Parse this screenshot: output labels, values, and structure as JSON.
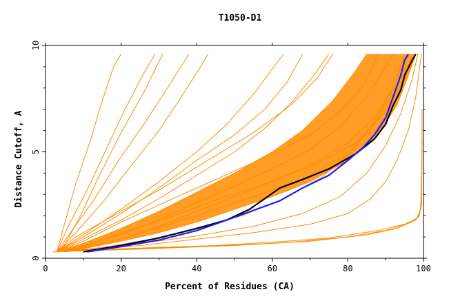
{
  "chart_data": {
    "type": "line",
    "title": "T1050-D1",
    "xlabel": "Percent of Residues (CA)",
    "ylabel": "Distance Cutoff, A",
    "xlim": [
      0,
      100
    ],
    "ylim": [
      0,
      10
    ],
    "x_ticks": [
      0,
      20,
      40,
      60,
      80,
      100
    ],
    "y_ticks": [
      0,
      5,
      10
    ],
    "x_tick_labels": [
      "0",
      "20",
      "40",
      "60",
      "80",
      "100"
    ],
    "y_tick_labels": [
      "0",
      "5",
      "10"
    ],
    "grid": false,
    "legend": "none",
    "colors": {
      "bundle": "#ff8c00",
      "black": "#000000",
      "blue": "#1a1aff"
    },
    "series": [
      {
        "color": "black",
        "points": [
          [
            10,
            0.3
          ],
          [
            20,
            0.6
          ],
          [
            30,
            0.95
          ],
          [
            40,
            1.4
          ],
          [
            48,
            1.8
          ],
          [
            54,
            2.3
          ],
          [
            58,
            2.8
          ],
          [
            62,
            3.3
          ],
          [
            68,
            3.7
          ],
          [
            75,
            4.2
          ],
          [
            82,
            4.9
          ],
          [
            87,
            5.6
          ],
          [
            90,
            6.3
          ],
          [
            92,
            7.2
          ],
          [
            94,
            7.9
          ],
          [
            95,
            8.6
          ],
          [
            97,
            9.3
          ],
          [
            98,
            9.6
          ]
        ]
      },
      {
        "color": "blue",
        "points": [
          [
            11,
            0.3
          ],
          [
            20,
            0.55
          ],
          [
            30,
            0.85
          ],
          [
            40,
            1.3
          ],
          [
            48,
            1.8
          ],
          [
            55,
            2.25
          ],
          [
            62,
            2.7
          ],
          [
            68,
            3.3
          ],
          [
            75,
            3.9
          ],
          [
            80,
            4.6
          ],
          [
            84,
            5.2
          ],
          [
            87,
            5.8
          ],
          [
            90,
            6.6
          ],
          [
            92,
            7.6
          ],
          [
            94,
            8.6
          ],
          [
            95,
            9.3
          ],
          [
            96,
            9.6
          ]
        ]
      },
      {
        "color": "bundle",
        "points": [
          [
            3,
            0.3
          ],
          [
            10,
            0.45
          ],
          [
            20,
            0.8
          ],
          [
            30,
            1.2
          ],
          [
            40,
            1.7
          ],
          [
            50,
            2.3
          ],
          [
            60,
            2.9
          ],
          [
            70,
            3.6
          ],
          [
            80,
            4.6
          ],
          [
            88,
            5.8
          ],
          [
            93,
            7.2
          ],
          [
            96,
            8.6
          ],
          [
            98,
            9.6
          ]
        ]
      },
      {
        "color": "bundle",
        "points": [
          [
            3,
            0.3
          ],
          [
            10,
            0.5
          ],
          [
            20,
            0.9
          ],
          [
            30,
            1.5
          ],
          [
            40,
            2.2
          ],
          [
            50,
            2.9
          ],
          [
            60,
            3.6
          ],
          [
            70,
            4.4
          ],
          [
            80,
            5.4
          ],
          [
            87,
            6.6
          ],
          [
            92,
            8.0
          ],
          [
            95,
            9.6
          ]
        ]
      },
      {
        "color": "bundle",
        "points": [
          [
            3,
            0.3
          ],
          [
            10,
            0.6
          ],
          [
            20,
            1.1
          ],
          [
            30,
            1.8
          ],
          [
            40,
            2.6
          ],
          [
            50,
            3.4
          ],
          [
            60,
            4.2
          ],
          [
            70,
            5.1
          ],
          [
            78,
            6.2
          ],
          [
            85,
            7.6
          ],
          [
            90,
            9.0
          ],
          [
            92,
            9.6
          ]
        ]
      },
      {
        "color": "bundle",
        "points": [
          [
            3,
            0.3
          ],
          [
            10,
            0.7
          ],
          [
            20,
            1.4
          ],
          [
            30,
            2.2
          ],
          [
            40,
            3.1
          ],
          [
            50,
            4.0
          ],
          [
            60,
            5.0
          ],
          [
            68,
            6.0
          ],
          [
            76,
            7.4
          ],
          [
            82,
            8.8
          ],
          [
            85,
            9.6
          ]
        ]
      },
      {
        "color": "bundle",
        "points": [
          [
            3,
            0.3
          ],
          [
            10,
            0.9
          ],
          [
            20,
            1.8
          ],
          [
            30,
            2.8
          ],
          [
            40,
            3.9
          ],
          [
            50,
            5.0
          ],
          [
            58,
            6.1
          ],
          [
            65,
            7.3
          ],
          [
            71,
            8.6
          ],
          [
            75,
            9.6
          ]
        ]
      },
      {
        "color": "bundle",
        "points": [
          [
            3,
            0.3
          ],
          [
            10,
            1.1
          ],
          [
            20,
            2.3
          ],
          [
            30,
            3.6
          ],
          [
            40,
            5.0
          ],
          [
            48,
            6.3
          ],
          [
            55,
            7.7
          ],
          [
            60,
            8.9
          ],
          [
            63,
            9.6
          ]
        ]
      },
      {
        "color": "bundle",
        "points": [
          [
            3,
            0.3
          ],
          [
            8,
            1.2
          ],
          [
            15,
            2.6
          ],
          [
            22,
            4.2
          ],
          [
            30,
            6.0
          ],
          [
            36,
            7.6
          ],
          [
            41,
            9.0
          ],
          [
            43,
            9.6
          ]
        ]
      },
      {
        "color": "bundle",
        "points": [
          [
            3,
            0.3
          ],
          [
            6,
            1.5
          ],
          [
            11,
            3.2
          ],
          [
            16,
            5.1
          ],
          [
            21,
            7.0
          ],
          [
            26,
            8.7
          ],
          [
            29,
            9.6
          ]
        ]
      },
      {
        "color": "bundle",
        "points": [
          [
            3,
            0.3
          ],
          [
            5,
            1.6
          ],
          [
            8,
            3.5
          ],
          [
            12,
            5.6
          ],
          [
            15,
            7.4
          ],
          [
            18,
            9.0
          ],
          [
            20,
            9.6
          ]
        ]
      },
      {
        "color": "bundle",
        "points": [
          [
            3,
            0.3
          ],
          [
            12,
            0.4
          ],
          [
            25,
            0.6
          ],
          [
            40,
            0.9
          ],
          [
            55,
            1.2
          ],
          [
            70,
            1.6
          ],
          [
            80,
            2.1
          ],
          [
            86,
            2.8
          ],
          [
            90,
            3.6
          ],
          [
            93,
            4.6
          ],
          [
            96,
            6.0
          ],
          [
            98,
            7.6
          ],
          [
            99,
            9.0
          ],
          [
            99.5,
            9.6
          ]
        ]
      },
      {
        "color": "bundle",
        "points": [
          [
            3,
            0.3
          ],
          [
            12,
            0.45
          ],
          [
            25,
            0.7
          ],
          [
            40,
            1.05
          ],
          [
            55,
            1.5
          ],
          [
            68,
            2.1
          ],
          [
            78,
            2.9
          ],
          [
            85,
            4.0
          ],
          [
            90,
            5.3
          ],
          [
            94,
            6.8
          ],
          [
            97,
            8.4
          ],
          [
            98.5,
            9.6
          ]
        ]
      },
      {
        "color": "bundle",
        "points": [
          [
            5,
            0.3
          ],
          [
            15,
            0.5
          ],
          [
            28,
            0.9
          ],
          [
            40,
            1.4
          ],
          [
            52,
            2.0
          ],
          [
            63,
            2.8
          ],
          [
            73,
            3.8
          ],
          [
            81,
            5.0
          ],
          [
            87,
            6.4
          ],
          [
            92,
            8.0
          ],
          [
            95,
            9.6
          ]
        ]
      },
      {
        "color": "bundle",
        "points": [
          [
            3,
            0.3
          ],
          [
            10,
            0.8
          ],
          [
            20,
            1.7
          ],
          [
            30,
            2.5
          ],
          [
            40,
            3.3
          ],
          [
            50,
            4.1
          ],
          [
            60,
            4.9
          ],
          [
            70,
            5.8
          ],
          [
            78,
            6.9
          ],
          [
            84,
            8.1
          ],
          [
            88,
            9.6
          ]
        ]
      },
      {
        "color": "bundle",
        "points": [
          [
            3,
            0.3
          ],
          [
            8,
            1.0
          ],
          [
            18,
            2.0
          ],
          [
            30,
            3.2
          ],
          [
            42,
            4.5
          ],
          [
            55,
            5.9
          ],
          [
            65,
            7.2
          ],
          [
            72,
            8.5
          ],
          [
            76,
            9.6
          ]
        ]
      },
      {
        "color": "bundle",
        "points": [
          [
            4,
            0.3
          ],
          [
            9,
            1.9
          ],
          [
            14,
            3.8
          ],
          [
            20,
            5.9
          ],
          [
            26,
            7.8
          ],
          [
            31,
            9.6
          ]
        ]
      },
      {
        "color": "bundle",
        "points": [
          [
            3,
            0.3
          ],
          [
            7,
            1.3
          ],
          [
            13,
            2.8
          ],
          [
            19,
            4.5
          ],
          [
            26,
            6.3
          ],
          [
            33,
            8.2
          ],
          [
            38,
            9.6
          ]
        ]
      },
      {
        "color": "bundle",
        "points": [
          [
            3,
            0.3
          ],
          [
            11,
            0.6
          ],
          [
            22,
            1.3
          ],
          [
            34,
            2.0
          ],
          [
            46,
            2.8
          ],
          [
            58,
            3.5
          ],
          [
            70,
            4.3
          ],
          [
            82,
            5.4
          ],
          [
            90,
            6.9
          ],
          [
            95,
            8.4
          ],
          [
            97,
            9.6
          ]
        ]
      },
      {
        "color": "bundle",
        "points": [
          [
            3,
            0.3
          ],
          [
            11,
            0.5
          ],
          [
            22,
            1.0
          ],
          [
            33,
            1.6
          ],
          [
            45,
            2.3
          ],
          [
            57,
            3.0
          ],
          [
            69,
            3.8
          ],
          [
            79,
            4.8
          ],
          [
            86,
            6.0
          ],
          [
            91,
            7.5
          ],
          [
            94,
            9.0
          ],
          [
            95,
            9.6
          ]
        ]
      },
      {
        "color": "bundle",
        "points": [
          [
            3,
            0.3
          ],
          [
            10,
            1.0
          ],
          [
            20,
            2.1
          ],
          [
            30,
            3.3
          ],
          [
            40,
            4.6
          ],
          [
            50,
            5.8
          ],
          [
            58,
            7.0
          ],
          [
            64,
            8.3
          ],
          [
            68,
            9.6
          ]
        ]
      },
      {
        "color": "bundle",
        "points": [
          [
            2,
            0.3
          ],
          [
            8,
            0.35
          ],
          [
            20,
            0.4
          ],
          [
            35,
            0.5
          ],
          [
            50,
            0.6
          ],
          [
            65,
            0.75
          ],
          [
            80,
            1.0
          ],
          [
            90,
            1.3
          ],
          [
            97,
            1.7
          ],
          [
            99,
            2.0
          ],
          [
            99.5,
            3.0
          ],
          [
            99.6,
            5.0
          ],
          [
            99.6,
            7.0
          ]
        ]
      },
      {
        "color": "bundle",
        "points": [
          [
            2,
            0.3
          ],
          [
            10,
            0.35
          ],
          [
            25,
            0.45
          ],
          [
            40,
            0.55
          ],
          [
            55,
            0.65
          ],
          [
            70,
            0.8
          ],
          [
            85,
            1.1
          ],
          [
            93,
            1.4
          ],
          [
            98,
            1.8
          ],
          [
            99.3,
            2.3
          ],
          [
            99.5,
            4.0
          ],
          [
            99.6,
            5.6
          ]
        ]
      },
      {
        "color": "bundle",
        "points": [
          [
            2,
            0.3
          ],
          [
            12,
            0.4
          ],
          [
            28,
            0.5
          ],
          [
            45,
            0.6
          ],
          [
            60,
            0.75
          ],
          [
            75,
            0.95
          ],
          [
            88,
            1.3
          ],
          [
            95,
            1.6
          ],
          [
            98.5,
            1.9
          ],
          [
            99.5,
            2.5
          ],
          [
            99.6,
            4.8
          ]
        ]
      }
    ]
  }
}
